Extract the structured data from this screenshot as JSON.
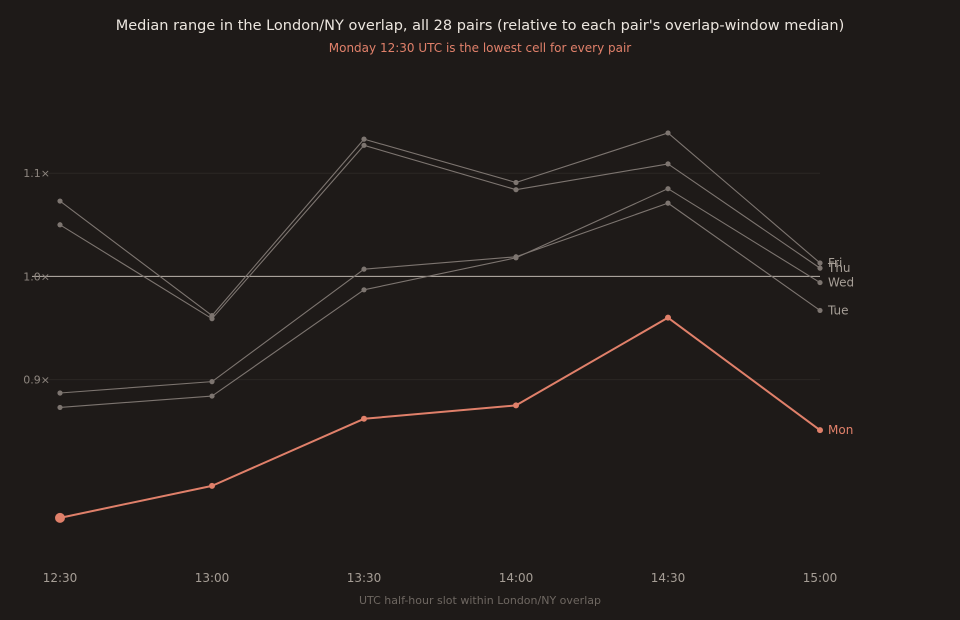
{
  "chart_data": {
    "type": "line",
    "title": "Median range in the London/NY overlap, all 28 pairs (relative to each pair's overlap-window median)",
    "subtitle": "Monday 12:30 UTC is the lowest cell for every pair",
    "xlabel": "UTC half-hour slot within London/NY overlap",
    "ylabel": "",
    "x": [
      "12:30",
      "13:00",
      "13:30",
      "14:00",
      "14:30",
      "15:00"
    ],
    "ylim": [
      0.73,
      1.2
    ],
    "yticks": [
      {
        "value": 0.9,
        "label": "0.9×"
      },
      {
        "value": 1.0,
        "label": "1.0×"
      },
      {
        "value": 1.1,
        "label": "1.1×"
      }
    ],
    "reference_line": 1.0,
    "grid": true,
    "series": [
      {
        "name": "Fri",
        "values": [
          1.073,
          0.962,
          1.133,
          1.091,
          1.139,
          1.013
        ]
      },
      {
        "name": "Thu",
        "values": [
          1.05,
          0.959,
          1.127,
          1.084,
          1.109,
          1.008
        ]
      },
      {
        "name": "Wed",
        "values": [
          0.873,
          0.884,
          0.987,
          1.018,
          1.085,
          0.994
        ]
      },
      {
        "name": "Tue",
        "values": [
          0.887,
          0.898,
          1.007,
          1.019,
          1.071,
          0.967
        ]
      },
      {
        "name": "Mon",
        "values": [
          0.766,
          0.797,
          0.862,
          0.875,
          0.96,
          0.851
        ],
        "highlight": true
      }
    ],
    "colors": {
      "muted": "#7d7570",
      "highlight": "#e0806a",
      "reference": "#bdb5ad",
      "grid": "#2b2724",
      "label_muted": "#a69e96"
    }
  }
}
